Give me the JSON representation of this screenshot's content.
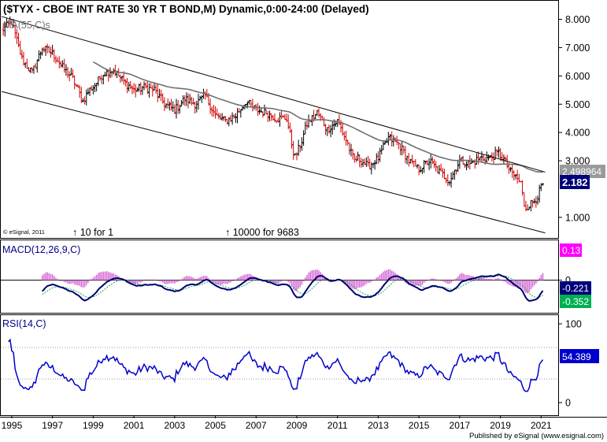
{
  "header": {
    "title": "($TYX - CBOE INT RATE 30 YR T BOND,M) Dynamic,0:00-24:00 (Delayed)",
    "ma_label": "MA(55,C)s",
    "copyright": "© eSignal, 2011",
    "split_note_1": "↑ 10 for 1",
    "split_note_2": "↑ 10000 for 9683",
    "footer": "Published by eSignal (www.esignal.com)"
  },
  "colors": {
    "background": "#ffffff",
    "frame": "#000000",
    "up_bar": "#000000",
    "down_bar": "#d00000",
    "ma_line": "#707070",
    "macd_line": "#00006e",
    "signal_line": "#1aaa66",
    "histogram": "#d66ad6",
    "rsi_line": "#0000cc",
    "rsi_band": "#9a9a9a",
    "title_text": "#000000",
    "indicator_label_text": "#00008b",
    "last_price_tag": "#00007a",
    "ma_value_tag": "#9a9a9a",
    "hist_value_tag": "#ff00ff",
    "signal_value_tag": "#00b050"
  },
  "chart_data": [
    {
      "type": "ohlc",
      "title": "($TYX - CBOE INT RATE 30 YR T BOND,M) Dynamic,0:00-24:00 (Delayed)",
      "x_ticks": [
        "1995",
        "1997",
        "1999",
        "2001",
        "2003",
        "2005",
        "2007",
        "2009",
        "2011",
        "2013",
        "2015",
        "2017",
        "2019",
        "2021"
      ],
      "x_range": [
        1994.5,
        2021.8
      ],
      "y_ticks": [
        "8.000",
        "7.000",
        "6.000",
        "5.000",
        "4.000",
        "3.000",
        "1.000"
      ],
      "y_range": [
        0.3,
        8.6
      ],
      "grid": false,
      "anchors": {
        "x": [
          1994.5,
          1995.0,
          1995.5,
          1996.0,
          1996.5,
          1997.0,
          1997.5,
          1998.0,
          1998.5,
          1998.8,
          1999.0,
          1999.5,
          2000.0,
          2000.5,
          2001.0,
          2001.5,
          2002.0,
          2002.5,
          2003.0,
          2003.5,
          2004.0,
          2004.5,
          2005.0,
          2005.5,
          2006.0,
          2006.5,
          2007.0,
          2007.5,
          2008.0,
          2008.5,
          2008.9,
          2009.2,
          2009.5,
          2010.0,
          2010.5,
          2011.0,
          2011.5,
          2011.8,
          2012.0,
          2012.5,
          2013.0,
          2013.5,
          2014.0,
          2014.5,
          2015.0,
          2015.5,
          2016.0,
          2016.5,
          2017.0,
          2017.5,
          2018.0,
          2018.5,
          2018.9,
          2019.2,
          2019.5,
          2019.8,
          2020.0,
          2020.2,
          2020.5,
          2020.8,
          2021.05
        ],
        "y": [
          7.6,
          7.9,
          6.6,
          6.1,
          7.0,
          6.8,
          6.3,
          5.9,
          5.1,
          5.5,
          5.6,
          6.1,
          6.2,
          5.8,
          5.5,
          5.6,
          5.5,
          5.0,
          4.8,
          5.2,
          5.0,
          5.3,
          4.6,
          4.4,
          4.6,
          5.1,
          4.8,
          4.7,
          4.5,
          4.5,
          3.1,
          3.6,
          4.3,
          4.7,
          4.1,
          4.4,
          3.6,
          3.0,
          3.1,
          2.8,
          3.1,
          3.8,
          3.6,
          3.0,
          2.7,
          3.0,
          2.6,
          2.3,
          3.0,
          2.9,
          3.1,
          3.1,
          3.3,
          3.0,
          2.6,
          2.4,
          2.2,
          1.3,
          1.5,
          1.7,
          2.182
        ]
      },
      "ma_period": 55,
      "last_value": "2.182",
      "ma_value": "2.498964",
      "trend_channel": {
        "upper": [
          [
            1994.5,
            8.1
          ],
          [
            2021.2,
            2.6
          ]
        ],
        "lower": [
          [
            1994.5,
            5.45
          ],
          [
            2021.2,
            0.45
          ]
        ]
      }
    },
    {
      "type": "line",
      "title": "MACD(12,26,9,C)",
      "y_ticks": [
        "0"
      ],
      "y_range": [
        -0.65,
        0.8
      ],
      "zero_line": true,
      "series": [
        {
          "name": "MACD",
          "role": "macd"
        },
        {
          "name": "Signal",
          "role": "signal"
        },
        {
          "name": "Histogram",
          "role": "histogram"
        }
      ],
      "values": {
        "histogram": "0.13",
        "macd": "-0.221",
        "signal": "-0.352"
      }
    },
    {
      "type": "line",
      "title": "RSI(14,C)",
      "y_ticks": [
        "100",
        "0"
      ],
      "y_range": [
        -15,
        110
      ],
      "bands": [
        70,
        30
      ],
      "last_value": "54.389"
    }
  ]
}
